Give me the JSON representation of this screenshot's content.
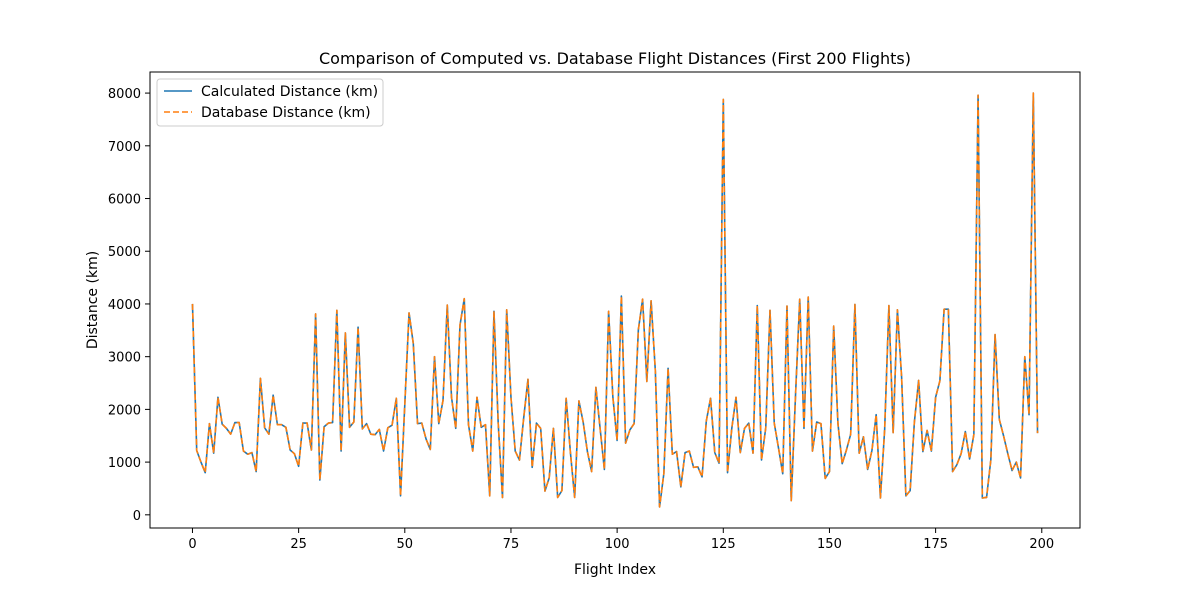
{
  "chart_data": {
    "type": "line",
    "title": "Comparison of Computed vs. Database Flight Distances (First 200 Flights)",
    "xlabel": "Flight Index",
    "ylabel": "Distance (km)",
    "xlim": [
      -10,
      209
    ],
    "ylim": [
      -250,
      8400
    ],
    "xticks": [
      0,
      25,
      50,
      75,
      100,
      125,
      150,
      175,
      200
    ],
    "xtick_labels": [
      "0",
      "25",
      "50",
      "75",
      "100",
      "125",
      "150",
      "175",
      "200"
    ],
    "yticks": [
      0,
      1000,
      2000,
      3000,
      4000,
      5000,
      6000,
      7000,
      8000
    ],
    "ytick_labels": [
      "0",
      "1000",
      "2000",
      "3000",
      "4000",
      "5000",
      "6000",
      "7000",
      "8000"
    ],
    "grid": false,
    "legend_position": "top-left",
    "series": [
      {
        "name": "Calculated Distance (km)",
        "color": "#1f77b4",
        "style": "solid",
        "values": [
          4000,
          1220,
          1000,
          800,
          1730,
          1170,
          2230,
          1720,
          1640,
          1530,
          1750,
          1750,
          1210,
          1150,
          1180,
          820,
          2590,
          1650,
          1530,
          2270,
          1710,
          1710,
          1660,
          1230,
          1160,
          920,
          1740,
          1740,
          1230,
          3810,
          660,
          1670,
          1740,
          1750,
          3880,
          1210,
          3450,
          1660,
          1760,
          3560,
          1630,
          1730,
          1530,
          1520,
          1620,
          1210,
          1650,
          1700,
          2210,
          360,
          2090,
          3830,
          3250,
          1730,
          1740,
          1440,
          1240,
          3000,
          1730,
          2170,
          3980,
          2230,
          1640,
          3600,
          4100,
          1710,
          1210,
          2230,
          1660,
          1710,
          360,
          3860,
          1730,
          330,
          3890,
          2230,
          1210,
          1040,
          1840,
          2570,
          900,
          1740,
          1640,
          450,
          700,
          1640,
          330,
          460,
          2210,
          1180,
          330,
          2160,
          1760,
          1200,
          820,
          2420,
          1630,
          860,
          3860,
          2230,
          1410,
          4150,
          1360,
          1610,
          1730,
          3510,
          4090,
          2530,
          4060,
          2730,
          150,
          780,
          2780,
          1150,
          1200,
          530,
          1180,
          1210,
          900,
          910,
          720,
          1780,
          2210,
          1180,
          980,
          7880,
          800,
          1640,
          2230,
          1180,
          1640,
          1740,
          1170,
          3970,
          1040,
          1650,
          3880,
          1740,
          1270,
          780,
          3960,
          270,
          2250,
          4090,
          1640,
          4130,
          1210,
          1760,
          1730,
          690,
          820,
          3580,
          1730,
          970,
          1230,
          1530,
          3990,
          1170,
          1480,
          860,
          1220,
          1900,
          320,
          1620,
          3970,
          1560,
          3890,
          2600,
          360,
          460,
          1760,
          2550,
          1200,
          1600,
          1210,
          2230,
          2540,
          3900,
          3900,
          820,
          950,
          1160,
          1580,
          1060,
          1520,
          7960,
          320,
          330,
          1040,
          3420,
          1810,
          1500,
          1160,
          840,
          1000,
          700,
          3000,
          1900,
          8000,
          1550
        ]
      },
      {
        "name": "Database Distance (km)",
        "color": "#ff7f0e",
        "style": "dashed",
        "values": [
          4000,
          1220,
          1000,
          800,
          1730,
          1170,
          2230,
          1720,
          1640,
          1530,
          1750,
          1750,
          1210,
          1150,
          1180,
          820,
          2590,
          1650,
          1530,
          2270,
          1710,
          1710,
          1660,
          1230,
          1160,
          920,
          1740,
          1740,
          1230,
          3810,
          660,
          1670,
          1740,
          1750,
          3880,
          1210,
          3450,
          1660,
          1760,
          3560,
          1630,
          1730,
          1530,
          1520,
          1620,
          1210,
          1650,
          1700,
          2210,
          360,
          2090,
          3830,
          3250,
          1730,
          1740,
          1440,
          1240,
          3000,
          1730,
          2170,
          3980,
          2230,
          1640,
          3600,
          4100,
          1710,
          1210,
          2230,
          1660,
          1710,
          360,
          3860,
          1730,
          330,
          3890,
          2230,
          1210,
          1040,
          1840,
          2570,
          900,
          1740,
          1640,
          450,
          700,
          1640,
          330,
          460,
          2210,
          1180,
          330,
          2160,
          1760,
          1200,
          820,
          2420,
          1630,
          860,
          3860,
          2230,
          1410,
          4150,
          1360,
          1610,
          1730,
          3510,
          4090,
          2530,
          4060,
          2730,
          150,
          780,
          2780,
          1150,
          1200,
          530,
          1180,
          1210,
          900,
          910,
          720,
          1780,
          2210,
          1180,
          980,
          7880,
          800,
          1640,
          2230,
          1180,
          1640,
          1740,
          1170,
          3970,
          1040,
          1650,
          3880,
          1740,
          1270,
          780,
          3960,
          270,
          2250,
          4090,
          1640,
          4130,
          1210,
          1760,
          1730,
          690,
          820,
          3580,
          1730,
          970,
          1230,
          1530,
          3990,
          1170,
          1480,
          860,
          1220,
          1900,
          320,
          1620,
          3970,
          1560,
          3890,
          2600,
          360,
          460,
          1760,
          2550,
          1200,
          1600,
          1210,
          2230,
          2540,
          3900,
          3900,
          820,
          950,
          1160,
          1580,
          1060,
          1520,
          7960,
          320,
          330,
          1040,
          3420,
          1810,
          1500,
          1160,
          840,
          1000,
          700,
          3000,
          1900,
          8000,
          1550
        ]
      }
    ]
  }
}
